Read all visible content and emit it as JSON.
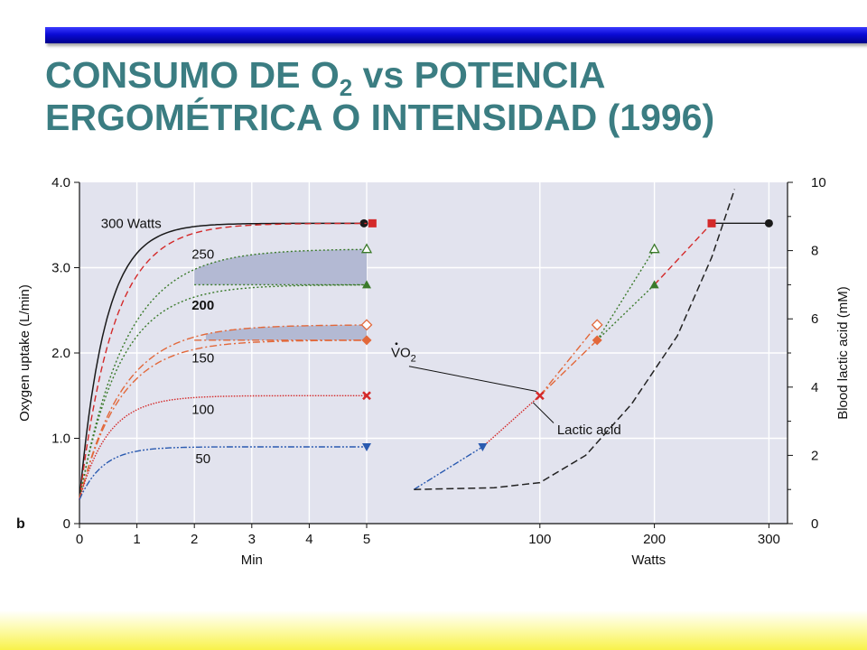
{
  "slide": {
    "title_line1_prefix": "CONSUMO DE O",
    "title_line1_sub": "2",
    "title_line1_suffix": " vs POTENCIA",
    "title_line2": "ERGOMÉTRICA O INTENSIDAD (1996)",
    "colors": {
      "title": "#3b7d82",
      "top_bar": "#0b0bd6",
      "bottom_band": "#f8f24a"
    }
  },
  "chart_data": [
    {
      "type": "line",
      "panel_label": "b",
      "xlabel": "Min",
      "ylabel": "Oxygen uptake (L/min)",
      "xlim": [
        0,
        5.5
      ],
      "ylim": [
        0,
        4.0
      ],
      "x_ticks": [
        0,
        1,
        2,
        3,
        4,
        5
      ],
      "y_ticks": [
        "0",
        "1.0",
        "2.0",
        "3.0",
        "4.0"
      ],
      "grid": true,
      "baseline_vo2": 0.28,
      "series": [
        {
          "name": "300 Watts",
          "color": "#1a1a1a",
          "dash": "solid",
          "steady_state": 3.52,
          "tau": 0.45,
          "end_x": 5.0,
          "end_marker": "circle-filled"
        },
        {
          "name": "250",
          "color": "#d42a2a",
          "dash": "dash",
          "steady_state": 3.52,
          "tau": 0.6,
          "end_x": 5.1,
          "end_marker": "square-filled"
        },
        {
          "name": "250",
          "color": "#3a7a2a",
          "dash": "dot",
          "steady_state": 3.22,
          "tau": 0.8,
          "end_x": 5.0,
          "end_marker": "triangle-open",
          "plateau_from_fast": 2.8
        },
        {
          "name": "200",
          "color": "#3a7a2a",
          "dash": "dot",
          "steady_state": 2.8,
          "tau": 0.7,
          "end_x": 5.0,
          "end_marker": "triangle-filled"
        },
        {
          "name": "",
          "color": "#e2683a",
          "dash": "dashdot",
          "steady_state": 2.33,
          "tau": 0.75,
          "end_x": 5.0,
          "end_marker": "diamond-open",
          "plateau_from_fast": 2.15
        },
        {
          "name": "150",
          "color": "#e2683a",
          "dash": "dashdot",
          "steady_state": 2.15,
          "tau": 0.7,
          "end_x": 5.0,
          "end_marker": "diamond-filled"
        },
        {
          "name": "100",
          "color": "#d42a2a",
          "dash": "finedot",
          "steady_state": 1.5,
          "tau": 0.5,
          "end_x": 5.0,
          "end_marker": "cross"
        },
        {
          "name": "50",
          "color": "#2a5ab0",
          "dash": "dashdotdot",
          "steady_state": 0.9,
          "tau": 0.4,
          "end_x": 5.0,
          "end_marker": "triangle-down"
        }
      ],
      "curve_labels": [
        {
          "text": "300 Watts",
          "x": 0.9,
          "y": 3.52
        },
        {
          "text": "250",
          "x": 2.15,
          "y": 3.16
        },
        {
          "text": "200",
          "x": 2.15,
          "y": 2.56
        },
        {
          "text": "150",
          "x": 2.15,
          "y": 1.94
        },
        {
          "text": "100",
          "x": 2.15,
          "y": 1.34
        },
        {
          "text": "50",
          "x": 2.15,
          "y": 0.76
        }
      ],
      "shaded_regions": [
        {
          "upper_steady": 3.22,
          "lower": 2.8,
          "x_from": 2.0,
          "x_to": 5.0
        },
        {
          "upper_steady": 2.33,
          "lower": 2.15,
          "x_from": 2.2,
          "x_to": 5.0
        }
      ]
    },
    {
      "type": "line",
      "xlabel": "Watts",
      "ylabel": "Blood lactic acid (mM)",
      "x_ticks": [
        100,
        200,
        300
      ],
      "xlim": [
        -90,
        315
      ],
      "ylim_left": [
        0,
        4.0
      ],
      "ylim_right": [
        0,
        10
      ],
      "y_ticks_right": [
        "0",
        "2",
        "4",
        "6",
        "8",
        "10"
      ],
      "grid": true,
      "vo2_label_main": "VO",
      "vo2_label_sub": "2",
      "lactic_label": "Lactic acid",
      "vo2_points": [
        {
          "x": -10,
          "y": 0.4,
          "marker": "none",
          "color": "#2a5ab0"
        },
        {
          "x": 50,
          "y": 0.9,
          "marker": "triangle-down",
          "color": "#2a5ab0"
        },
        {
          "x": 100,
          "y": 1.5,
          "marker": "cross",
          "color": "#d42a2a"
        },
        {
          "x": 150,
          "y": 2.15,
          "marker": "diamond-filled",
          "color": "#e2683a"
        },
        {
          "x": 200,
          "y": 2.8,
          "marker": "triangle-filled",
          "color": "#3a7a2a"
        },
        {
          "x": 250,
          "y": 3.52,
          "marker": "square-filled",
          "color": "#d42a2a"
        },
        {
          "x": 300,
          "y": 3.52,
          "marker": "circle-filled",
          "color": "#1a1a1a"
        }
      ],
      "vo2_upper_points": [
        {
          "x": 100,
          "y": 1.5,
          "marker": "cross"
        },
        {
          "x": 150,
          "y": 2.33,
          "marker": "diamond-open",
          "color": "#e2683a"
        },
        {
          "x": 200,
          "y": 3.22,
          "marker": "triangle-open",
          "color": "#3a7a2a"
        }
      ],
      "lactic_acid": [
        {
          "x": -10,
          "y": 1.0
        },
        {
          "x": 60,
          "y": 1.05
        },
        {
          "x": 100,
          "y": 1.2
        },
        {
          "x": 140,
          "y": 2.0
        },
        {
          "x": 180,
          "y": 3.5
        },
        {
          "x": 220,
          "y": 5.5
        },
        {
          "x": 250,
          "y": 7.8
        },
        {
          "x": 270,
          "y": 9.8
        }
      ]
    }
  ]
}
